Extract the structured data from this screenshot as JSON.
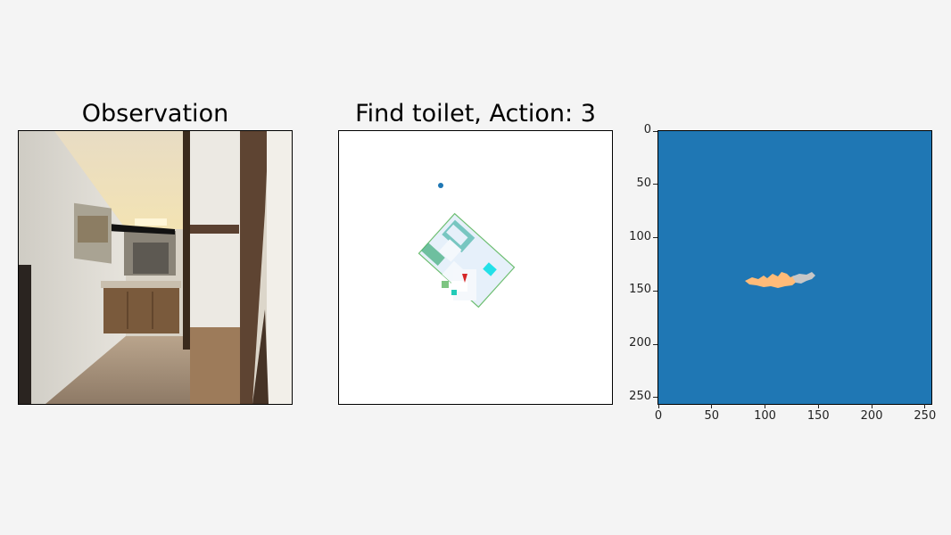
{
  "panels": {
    "observation": {
      "title": "Observation",
      "scene": "indoor-hallway-bathroom-vanity"
    },
    "map": {
      "title": "Find toilet, Action: 3",
      "goal_marker_color": "#1f77b4",
      "agent_marker_color": "#d62728",
      "explored_color": "#e8f2fa",
      "obstacle_color": "#4ab7b0"
    },
    "semantic": {
      "background_color": "#1f77b4",
      "blob_colors": [
        "#ffbb78",
        "#c7c7c7"
      ],
      "x_ticks": [
        "0",
        "50",
        "100",
        "150",
        "200",
        "250"
      ],
      "y_ticks": [
        "0",
        "50",
        "100",
        "150",
        "200",
        "250"
      ],
      "axis_max": 256
    }
  }
}
